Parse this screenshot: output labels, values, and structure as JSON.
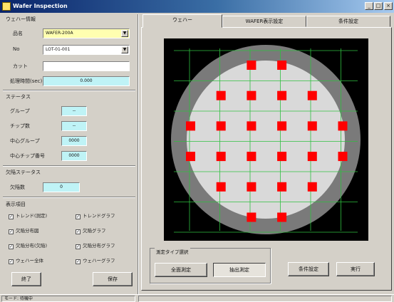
{
  "window": {
    "title": "Wafer Inspection",
    "controls": [
      "_",
      "□",
      "×"
    ]
  },
  "wafer_info": {
    "group_title": "ウェハー情報",
    "type_label": "品名",
    "type_value": "WAFER-200A",
    "lot_label": "No",
    "lot_value": "LOT-01-001",
    "cut_label": "カット",
    "cut_value": "",
    "time_label": "処理時間(sec)",
    "time_value": "0.000"
  },
  "status": {
    "group_title": "ステータス",
    "rows": [
      {
        "label": "グループ",
        "value": "--"
      },
      {
        "label": "チップ数",
        "value": "--"
      },
      {
        "label": "中心グループ",
        "value": "0000"
      },
      {
        "label": "中心チップ番号",
        "value": "0000"
      }
    ]
  },
  "defect_status": {
    "group_title": "欠陥ステータス",
    "count_label": "欠陥数",
    "count_value": "0"
  },
  "display_items": {
    "group_title": "表示項目",
    "items": [
      {
        "label": "トレンド(測定)",
        "checked": true
      },
      {
        "label": "トレンドグラフ",
        "checked": true
      },
      {
        "label": "欠陥分布図",
        "checked": true
      },
      {
        "label": "欠陥グラフ",
        "checked": true
      },
      {
        "label": "欠陥分布(欠陥)",
        "checked": true
      },
      {
        "label": "欠陥分布グラフ",
        "checked": true
      },
      {
        "label": "ウェハー全体",
        "checked": true
      },
      {
        "label": "ウェハーグラフ",
        "checked": true
      }
    ]
  },
  "left_buttons": {
    "exit": "終了",
    "save": "保存"
  },
  "status_bar": {
    "left": "モード: 待機中",
    "right": ""
  },
  "tabs": [
    {
      "label": "ウェハー",
      "active": true
    },
    {
      "label": "WAFER表示設定",
      "active": false
    },
    {
      "label": "条件設定",
      "active": false
    }
  ],
  "measure_group": {
    "title": "測定タイプ選択",
    "btn_full": "全面測定",
    "btn_sample": "抽出測定"
  },
  "right_buttons": {
    "settings": "条件設定",
    "apply": "実行"
  },
  "wafer_map": {
    "columns": 6,
    "rows": 6,
    "chip_color": "#ff0000",
    "wafer_fill": "#d9d9d9",
    "ring_color": "#7a7a7a",
    "grid_color": "#2fbf3f",
    "chips": [
      [
        1,
        0
      ],
      [
        2,
        0
      ],
      [
        0,
        1
      ],
      [
        1,
        1
      ],
      [
        2,
        1
      ],
      [
        3,
        1
      ],
      [
        -1,
        2
      ],
      [
        0,
        2
      ],
      [
        1,
        2
      ],
      [
        2,
        2
      ],
      [
        3,
        2
      ],
      [
        4,
        2
      ],
      [
        -1,
        3
      ],
      [
        0,
        3
      ],
      [
        1,
        3
      ],
      [
        2,
        3
      ],
      [
        3,
        3
      ],
      [
        4,
        3
      ],
      [
        0,
        4
      ],
      [
        1,
        4
      ],
      [
        2,
        4
      ],
      [
        3,
        4
      ],
      [
        1,
        5
      ],
      [
        2,
        5
      ]
    ]
  }
}
